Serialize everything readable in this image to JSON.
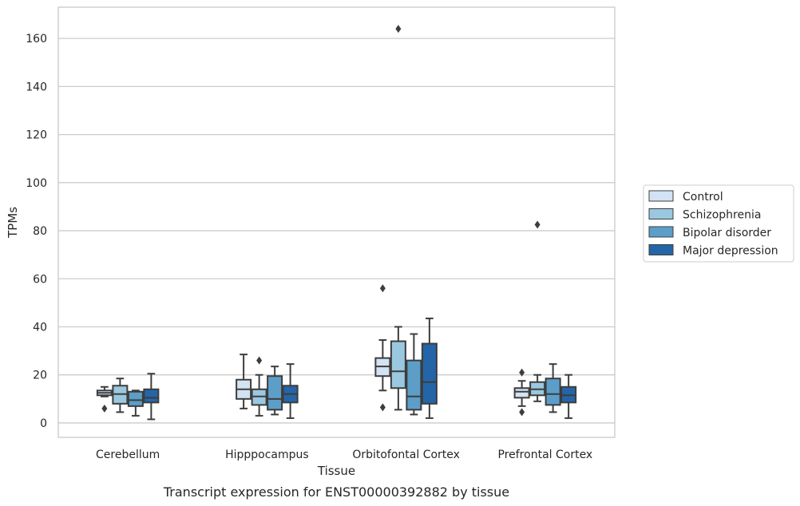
{
  "chart_data": {
    "type": "box",
    "xlabel": "Tissue",
    "ylabel": "TPMs",
    "caption": "Transcript expression for ENST00000392882 by tissue",
    "ylim": [
      -6,
      173
    ],
    "yticks": [
      0,
      20,
      40,
      60,
      80,
      100,
      120,
      140,
      160
    ],
    "grid": "horizontal",
    "legend_position": "right",
    "categories": [
      "Cerebellum",
      "Hipppocampus",
      "Orbitofontal Cortex",
      "Prefrontal Cortex"
    ],
    "series": [
      {
        "name": "Control",
        "color": "#d3e3f3",
        "boxes": [
          {
            "whislo": 11,
            "q1": 11.5,
            "med": 12.5,
            "q3": 13.5,
            "whishi": 15,
            "fliers": [
              6
            ]
          },
          {
            "whislo": 6,
            "q1": 10,
            "med": 14,
            "q3": 18,
            "whishi": 28.5,
            "fliers": []
          },
          {
            "whislo": 13.5,
            "q1": 19.5,
            "med": 23.5,
            "q3": 27,
            "whishi": 34.5,
            "fliers": [
              56,
              6.5
            ]
          },
          {
            "whislo": 7,
            "q1": 10.5,
            "med": 13,
            "q3": 14.5,
            "whishi": 17.5,
            "fliers": [
              21,
              4.5
            ]
          }
        ]
      },
      {
        "name": "Schizophrenia",
        "color": "#9ac8e0",
        "boxes": [
          {
            "whislo": 4.5,
            "q1": 8,
            "med": 12,
            "q3": 15.5,
            "whishi": 18.5,
            "fliers": []
          },
          {
            "whislo": 3,
            "q1": 7.5,
            "med": 11,
            "q3": 14,
            "whishi": 20,
            "fliers": [
              26
            ]
          },
          {
            "whislo": 5.5,
            "q1": 14.5,
            "med": 21.5,
            "q3": 34,
            "whishi": 40,
            "fliers": [
              164
            ]
          },
          {
            "whislo": 9,
            "q1": 11.5,
            "med": 14,
            "q3": 17,
            "whishi": 20,
            "fliers": [
              82.5
            ]
          }
        ]
      },
      {
        "name": "Bipolar disorder",
        "color": "#5c9ec8",
        "boxes": [
          {
            "whislo": 3,
            "q1": 7,
            "med": 9.5,
            "q3": 13,
            "whishi": 13.5,
            "fliers": []
          },
          {
            "whislo": 3.5,
            "q1": 5.5,
            "med": 10,
            "q3": 19.5,
            "whishi": 23.5,
            "fliers": []
          },
          {
            "whislo": 3.5,
            "q1": 5.5,
            "med": 11,
            "q3": 26,
            "whishi": 37,
            "fliers": []
          },
          {
            "whislo": 4.5,
            "q1": 7.5,
            "med": 12,
            "q3": 18.5,
            "whishi": 24.5,
            "fliers": []
          }
        ]
      },
      {
        "name": "Major depression",
        "color": "#2465a8",
        "boxes": [
          {
            "whislo": 1.5,
            "q1": 8.5,
            "med": 10.5,
            "q3": 14,
            "whishi": 20.5,
            "fliers": []
          },
          {
            "whislo": 2,
            "q1": 8.5,
            "med": 12,
            "q3": 15.5,
            "whishi": 24.5,
            "fliers": []
          },
          {
            "whislo": 2,
            "q1": 8,
            "med": 17,
            "q3": 33,
            "whishi": 43.5,
            "fliers": []
          },
          {
            "whislo": 2,
            "q1": 8.5,
            "med": 11.5,
            "q3": 15,
            "whishi": 20,
            "fliers": []
          }
        ]
      }
    ]
  }
}
